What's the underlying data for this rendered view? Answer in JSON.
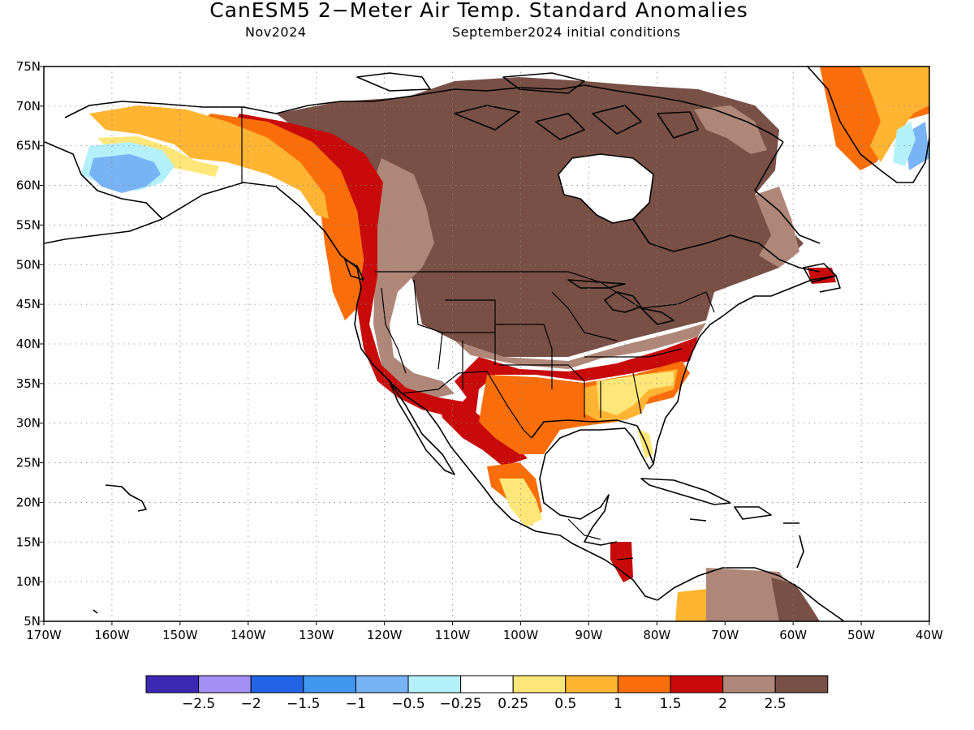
{
  "title": "CanESM5 2−Meter Air Temp. Standard Anomalies",
  "subtitle_left": "Nov2024",
  "subtitle_right": "September2024 initial conditions",
  "lon_labels": [
    "170W",
    "160W",
    "150W",
    "140W",
    "130W",
    "120W",
    "110W",
    "100W",
    "90W",
    "80W",
    "70W",
    "60W",
    "50W",
    "40W"
  ],
  "lat_labels": [
    "75N",
    "70N",
    "65N",
    "60N",
    "55N",
    "50N",
    "45N",
    "40N",
    "35N",
    "30N",
    "25N",
    "20N",
    "15N",
    "10N",
    "5N"
  ],
  "colorbar": {
    "labels": [
      "−2.5",
      "−2",
      "−1.5",
      "−1",
      "−0.5",
      "−0.25",
      "0.25",
      "0.5",
      "1",
      "1.5",
      "2",
      "2.5"
    ],
    "colors": [
      "#3d28b4",
      "#a591f5",
      "#2264e6",
      "#4196f0",
      "#78b4f5",
      "#b4f0fa",
      "#ffffff",
      "#ffe678",
      "#ffb432",
      "#fa6e0a",
      "#c80a0a",
      "#af8778",
      "#785046"
    ]
  },
  "map_colors": {
    "land_outline": "#000000",
    "grid": "#888888"
  }
}
